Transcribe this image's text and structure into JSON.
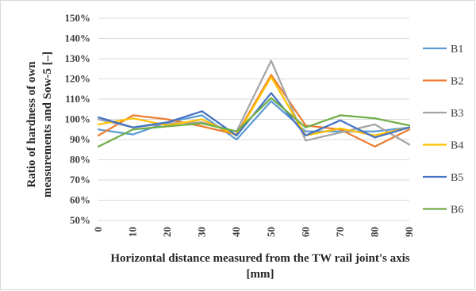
{
  "chart_data": {
    "type": "line",
    "x": [
      0,
      10,
      20,
      30,
      40,
      50,
      60,
      70,
      80,
      90
    ],
    "xlim": [
      0,
      90
    ],
    "ylim": [
      50,
      150
    ],
    "y_unit": "%",
    "grid": "horizontal",
    "legend_position": "right",
    "xlabel": "Horizontal distance measured from the TW rail joint's axis [mm]",
    "xlabel_line1": "Horizontal distance measured from the TW rail joint's axis",
    "xlabel_line2": "[mm]",
    "ylabel": "Ratio of hardness of own measurements and Sow-5 [–]",
    "ylabel_line1": "Ratio of hardness of own",
    "ylabel_line2": "measurements  and Sow-5 [–]",
    "x_ticks": [
      "0",
      "10",
      "20",
      "30",
      "40",
      "50",
      "60",
      "70",
      "80",
      "90"
    ],
    "y_ticks": [
      "50%",
      "60%",
      "70%",
      "80%",
      "90%",
      "100%",
      "110%",
      "120%",
      "130%",
      "140%",
      "150%"
    ],
    "y_tick_values": [
      50,
      60,
      70,
      80,
      90,
      100,
      110,
      120,
      130,
      140,
      150
    ],
    "series": [
      {
        "name": "B1",
        "color": "#5b9bd5",
        "values": [
          95,
          92.5,
          98.5,
          102,
          90,
          109,
          94,
          94,
          94,
          96
        ]
      },
      {
        "name": "B2",
        "color": "#ed7d31",
        "values": [
          92,
          102,
          100,
          96.5,
          92.5,
          122,
          97,
          95,
          86.5,
          95
        ]
      },
      {
        "name": "B3",
        "color": "#a5a5a5",
        "values": [
          100,
          96,
          98,
          98.5,
          94,
          129,
          89.5,
          93.5,
          97.5,
          87.5
        ]
      },
      {
        "name": "B4",
        "color": "#ffc000",
        "values": [
          97.5,
          100.5,
          97,
          100,
          92,
          121,
          92,
          95.5,
          92,
          96
        ]
      },
      {
        "name": "B5",
        "color": "#4472c4",
        "values": [
          101,
          96,
          98.5,
          104,
          92,
          113,
          92,
          99.5,
          91,
          96
        ]
      },
      {
        "name": "B6",
        "color": "#70ad47",
        "values": [
          86.5,
          95,
          96.5,
          98,
          94,
          110.5,
          96,
          102,
          100.5,
          97
        ]
      }
    ]
  }
}
